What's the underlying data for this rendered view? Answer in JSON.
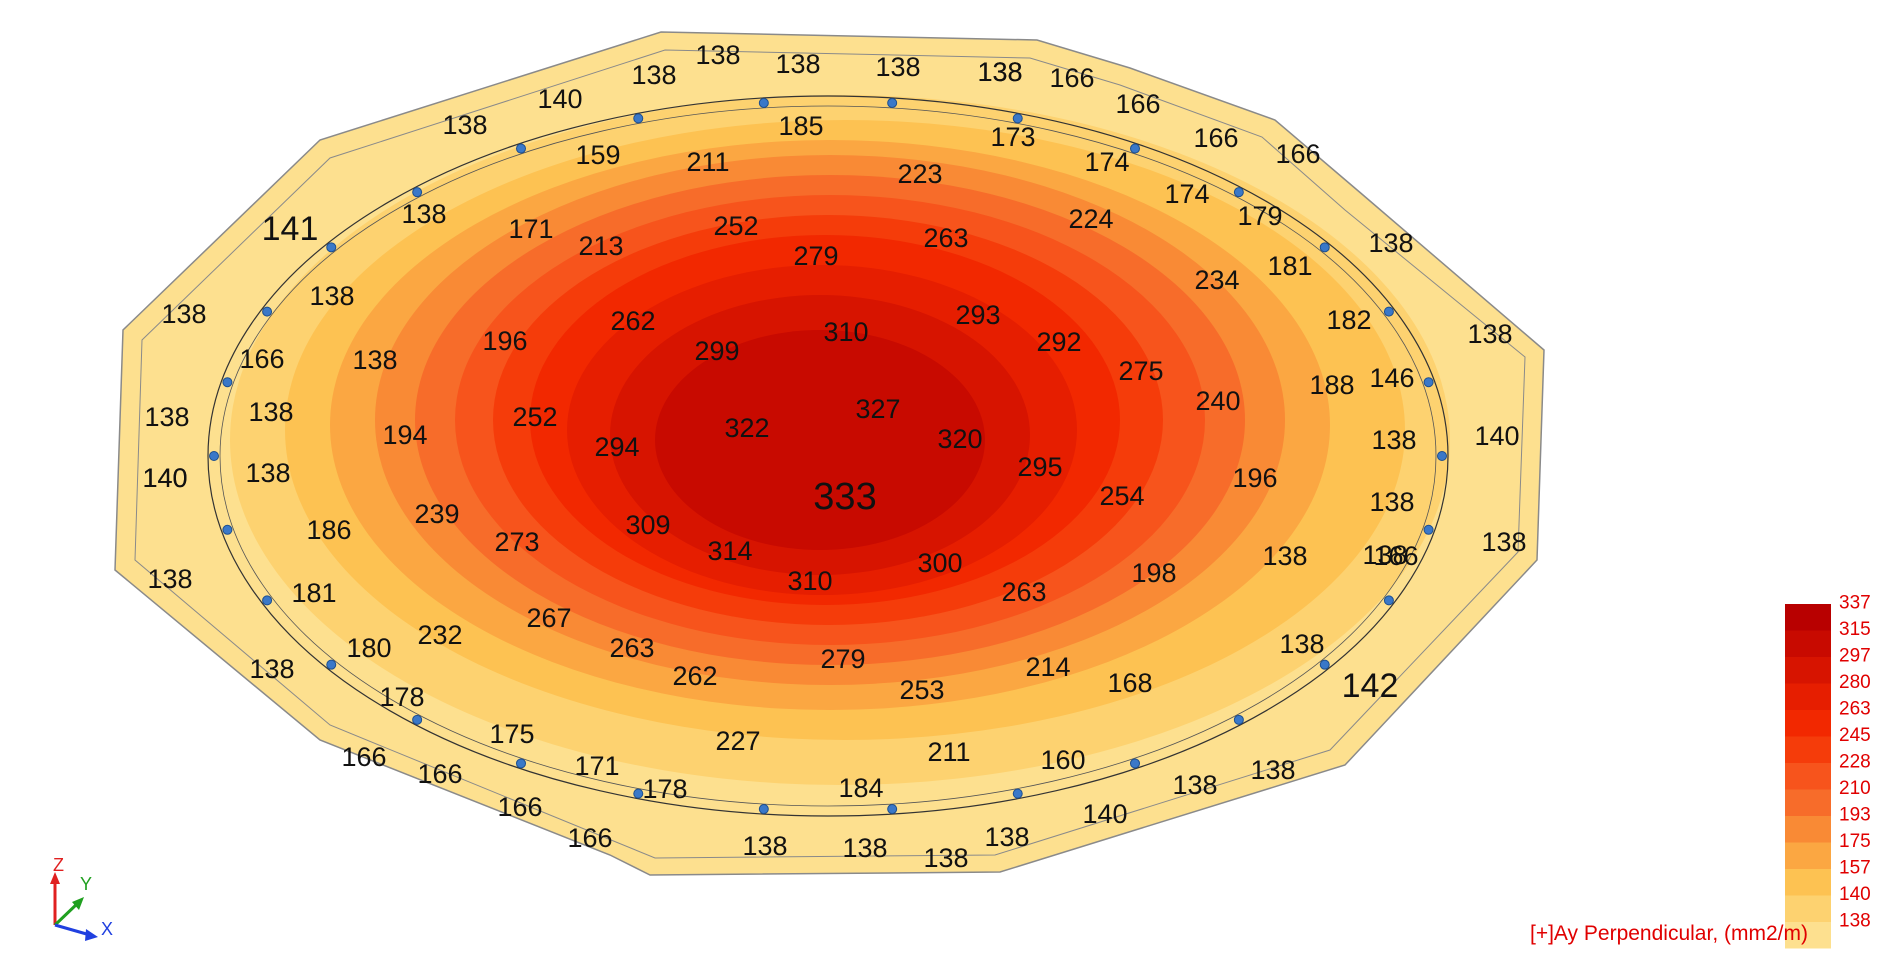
{
  "legend": {
    "caption": "[+]Ay Perpendicular, (mm2/m)",
    "levels": [
      {
        "label": "337",
        "color": "#b80000"
      },
      {
        "label": "315",
        "color": "#c80a00"
      },
      {
        "label": "297",
        "color": "#d71400"
      },
      {
        "label": "280",
        "color": "#e61e00"
      },
      {
        "label": "263",
        "color": "#f22800"
      },
      {
        "label": "245",
        "color": "#f53c0a"
      },
      {
        "label": "228",
        "color": "#f7541c"
      },
      {
        "label": "210",
        "color": "#f76c2a"
      },
      {
        "label": "193",
        "color": "#f98a35"
      },
      {
        "label": "175",
        "color": "#fba742"
      },
      {
        "label": "157",
        "color": "#fdc252"
      },
      {
        "label": "140",
        "color": "#fdd270"
      },
      {
        "label": "138",
        "color": "#fde08f"
      }
    ]
  },
  "plate_values": [
    [
      "138",
      0
    ],
    [
      "138",
      0
    ],
    [
      "138",
      0
    ],
    [
      "138",
      0
    ],
    [
      "138",
      0
    ],
    [
      "166",
      0
    ],
    [
      "140",
      0
    ],
    [
      "138",
      0
    ],
    [
      "166",
      0
    ],
    [
      "166",
      0
    ],
    [
      "166",
      0
    ],
    [
      "138",
      0
    ],
    [
      "185",
      0
    ],
    [
      "173",
      0
    ],
    [
      "159",
      0
    ],
    [
      "211",
      0
    ],
    [
      "223",
      0
    ],
    [
      "174",
      0
    ],
    [
      "174",
      0
    ],
    [
      "179",
      0
    ],
    [
      "138",
      0
    ],
    [
      "141",
      1
    ],
    [
      "171",
      0
    ],
    [
      "213",
      0
    ],
    [
      "252",
      0
    ],
    [
      "263",
      0
    ],
    [
      "224",
      0
    ],
    [
      "279",
      0
    ],
    [
      "181",
      0
    ],
    [
      "138",
      0
    ],
    [
      "234",
      0
    ],
    [
      "138",
      0
    ],
    [
      "138",
      0
    ],
    [
      "262",
      0
    ],
    [
      "182",
      0
    ],
    [
      "138",
      0
    ],
    [
      "166",
      0
    ],
    [
      "196",
      0
    ],
    [
      "299",
      0
    ],
    [
      "310",
      0
    ],
    [
      "293",
      0
    ],
    [
      "292",
      0
    ],
    [
      "138",
      0
    ],
    [
      "275",
      0
    ],
    [
      "146",
      0
    ],
    [
      "138",
      0
    ],
    [
      "138",
      0
    ],
    [
      "252",
      0
    ],
    [
      "327",
      0
    ],
    [
      "188",
      0
    ],
    [
      "240",
      0
    ],
    [
      "194",
      0
    ],
    [
      "322",
      0
    ],
    [
      "140",
      0
    ],
    [
      "294",
      0
    ],
    [
      "320",
      0
    ],
    [
      "138",
      0
    ],
    [
      "140",
      0
    ],
    [
      "140",
      0
    ],
    [
      "138",
      0
    ],
    [
      "295",
      0
    ],
    [
      "333",
      2
    ],
    [
      "196",
      0
    ],
    [
      "239",
      0
    ],
    [
      "309",
      0
    ],
    [
      "254",
      0
    ],
    [
      "138",
      0
    ],
    [
      "186",
      0
    ],
    [
      "273",
      0
    ],
    [
      "138",
      0
    ],
    [
      "314",
      0
    ],
    [
      "300",
      0
    ],
    [
      "138",
      0
    ],
    [
      "166",
      0
    ],
    [
      "310",
      0
    ],
    [
      "138",
      0
    ],
    [
      "181",
      0
    ],
    [
      "263",
      0
    ],
    [
      "198",
      0
    ],
    [
      "267",
      0
    ],
    [
      "232",
      0
    ],
    [
      "180",
      0
    ],
    [
      "263",
      0
    ],
    [
      "138",
      0
    ],
    [
      "138",
      0
    ],
    [
      "279",
      0
    ],
    [
      "262",
      0
    ],
    [
      "214",
      0
    ],
    [
      "253",
      0
    ],
    [
      "168",
      0
    ],
    [
      "142",
      1
    ],
    [
      "178",
      0
    ],
    [
      "138",
      0
    ],
    [
      "175",
      0
    ],
    [
      "227",
      0
    ],
    [
      "211",
      0
    ],
    [
      "160",
      0
    ],
    [
      "138",
      0
    ],
    [
      "166",
      0
    ],
    [
      "171",
      0
    ],
    [
      "166",
      0
    ],
    [
      "138",
      0
    ],
    [
      "178",
      0
    ],
    [
      "184",
      0
    ],
    [
      "140",
      0
    ],
    [
      "166",
      0
    ],
    [
      "166",
      0
    ],
    [
      "138",
      0
    ],
    [
      "138",
      0
    ],
    [
      "138",
      0
    ],
    [
      "138",
      0
    ]
  ],
  "axes": {
    "z": "Z",
    "y": "Y",
    "x": "X"
  }
}
